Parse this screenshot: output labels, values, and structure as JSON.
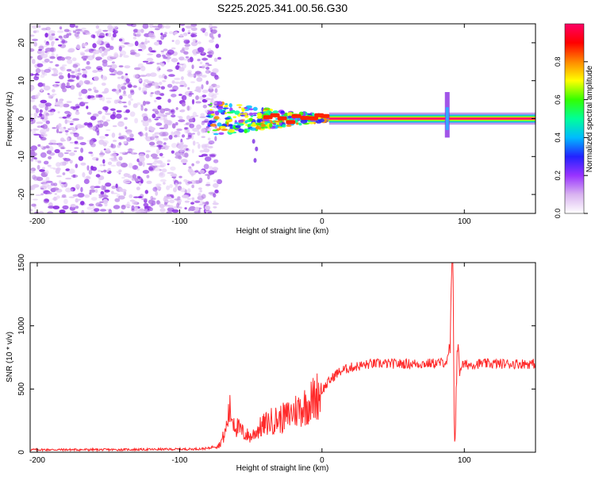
{
  "title": "S225.2025.341.00.56.G30",
  "chart_data": [
    {
      "type": "heatmap",
      "title": "S225.2025.341.00.56.G30",
      "xlabel": "Height of straight line (km)",
      "ylabel": "Frequency (Hz)",
      "xlim": [
        -205,
        150
      ],
      "ylim": [
        -25,
        25
      ],
      "x_ticks": [
        -200,
        -100,
        0,
        100
      ],
      "y_ticks": [
        -20,
        -10,
        0,
        10,
        20
      ],
      "colorbar": {
        "label": "Normalized spectral amplitude",
        "range": [
          0,
          1
        ],
        "ticks": [
          "0.0",
          "0.2",
          "0.4",
          "0.6",
          "0.8"
        ],
        "colors": [
          "#ffffff",
          "#d9b3f0",
          "#9933ff",
          "#2222ff",
          "#00bbff",
          "#00ff99",
          "#33ff00",
          "#ffff00",
          "#ff8800",
          "#ff0000",
          "#ff0066"
        ]
      },
      "regions": {
        "noise_x": [
          -205,
          -80
        ],
        "transition_x": [
          -80,
          5
        ],
        "carrier_x": [
          5,
          150
        ],
        "carrier_freq": 0,
        "carrier_amplitude": 0.95,
        "spike_x": 88
      }
    },
    {
      "type": "line",
      "xlabel": "Height of straight line (km)",
      "ylabel": "SNR (10 * v/v)",
      "xlim": [
        -205,
        150
      ],
      "ylim": [
        0,
        1500
      ],
      "x_ticks": [
        -200,
        -100,
        0,
        100
      ],
      "y_ticks": [
        0,
        500,
        1000,
        1500
      ],
      "color": "#ff2a2a",
      "series": [
        {
          "name": "SNR",
          "x": [
            -205,
            -180,
            -150,
            -120,
            -90,
            -80,
            -72,
            -68,
            -65,
            -60,
            -55,
            -50,
            -45,
            -40,
            -35,
            -30,
            -25,
            -20,
            -15,
            -10,
            -5,
            0,
            5,
            10,
            15,
            20,
            25,
            30,
            35,
            40,
            50,
            60,
            70,
            80,
            85,
            88,
            90,
            91,
            92,
            93,
            94,
            95,
            96,
            97,
            98,
            100,
            110,
            120,
            130,
            140,
            150
          ],
          "values": [
            20,
            20,
            20,
            22,
            25,
            30,
            60,
            150,
            330,
            200,
            150,
            120,
            180,
            220,
            250,
            260,
            280,
            320,
            350,
            380,
            430,
            490,
            560,
            620,
            650,
            670,
            680,
            690,
            700,
            700,
            700,
            700,
            700,
            705,
            710,
            720,
            800,
            1400,
            1500,
            100,
            300,
            900,
            700,
            650,
            690,
            690,
            700,
            700,
            700,
            700,
            700
          ]
        }
      ]
    }
  ]
}
